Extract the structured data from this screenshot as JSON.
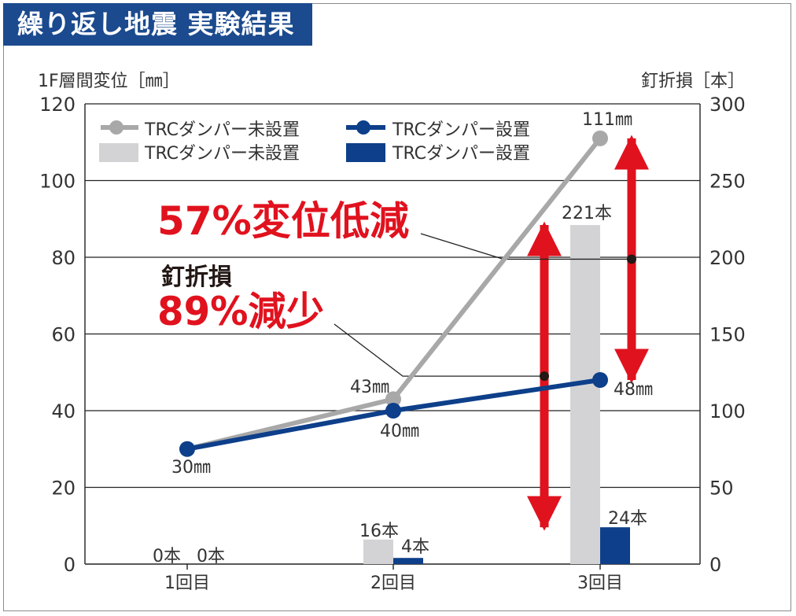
{
  "title": "繰り返し地震 実験結果",
  "colors": {
    "title_bg": "#1b4a8e",
    "gray_line": "#a8a8a8",
    "gray_bar": "#d3d3d5",
    "blue": "#0d3f8a",
    "red": "#e0121e",
    "dark": "#231815",
    "text": "#333333"
  },
  "chart_data": {
    "type": "bar+line",
    "title": "繰り返し地震 実験結果",
    "categories": [
      "1回目",
      "2回目",
      "3回目"
    ],
    "left_axis": {
      "label": "1F層間変位［㎜］",
      "ticks": [
        0,
        20,
        40,
        60,
        80,
        100,
        120
      ],
      "range": [
        0,
        120
      ]
    },
    "right_axis": {
      "label": "釘折損［本］",
      "ticks": [
        0,
        50,
        100,
        150,
        200,
        250,
        300
      ],
      "range": [
        0,
        300
      ]
    },
    "line_series": [
      {
        "name": "TRCダンパー未設置",
        "color": "gray",
        "values": [
          null,
          43,
          111
        ],
        "labels": [
          "",
          "43㎜",
          "111㎜"
        ]
      },
      {
        "name": "TRCダンパー設置",
        "color": "blue",
        "values": [
          30,
          40,
          48
        ],
        "labels": [
          "30㎜",
          "40㎜",
          "48㎜"
        ]
      }
    ],
    "bar_series": [
      {
        "name": "TRCダンパー未設置",
        "color": "gray",
        "values": [
          0,
          16,
          221
        ],
        "labels": [
          "0本",
          "16本",
          "221本"
        ]
      },
      {
        "name": "TRCダンパー設置",
        "color": "blue",
        "values": [
          0,
          4,
          24
        ],
        "labels": [
          "0本",
          "4本",
          "24本"
        ]
      }
    ],
    "legend": {
      "position": "top-left",
      "items": [
        {
          "kind": "line",
          "color": "gray",
          "label": "TRCダンパー未設置"
        },
        {
          "kind": "line",
          "color": "blue",
          "label": "TRCダンパー設置"
        },
        {
          "kind": "bar",
          "color": "gray",
          "label": "TRCダンパー未設置"
        },
        {
          "kind": "bar",
          "color": "blue",
          "label": "TRCダンパー設置"
        }
      ]
    },
    "annotations": {
      "displacement": {
        "text": "57%変位低減"
      },
      "nail_label": {
        "text": "釘折損"
      },
      "nail": {
        "text": "89%減少"
      }
    }
  }
}
